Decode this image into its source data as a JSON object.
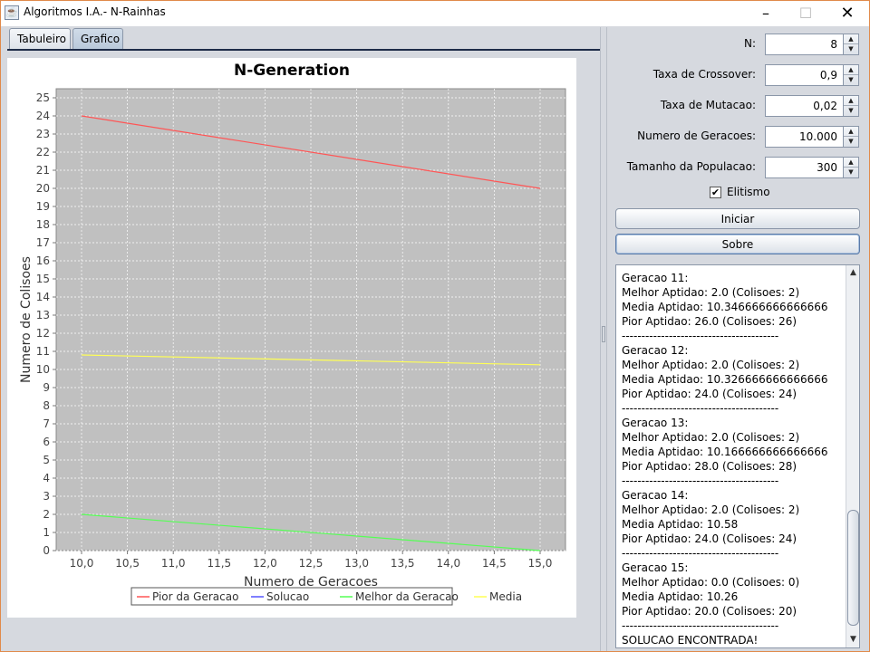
{
  "window": {
    "title": "Algoritmos I.A.- N-Rainhas"
  },
  "tabs": [
    {
      "label": "Tabuleiro"
    },
    {
      "label": "Grafico",
      "selected": true
    }
  ],
  "form": {
    "n_label": "N:",
    "n_value": "8",
    "crossover_label": "Taxa de Crossover:",
    "crossover_value": "0,9",
    "mutacao_label": "Taxa de Mutacao:",
    "mutacao_value": "0,02",
    "geracoes_label": "Numero de Geracoes:",
    "geracoes_value": "10.000",
    "populacao_label": "Tamanho da Populacao:",
    "populacao_value": "300",
    "elitismo_label": "Elitismo",
    "elitismo_checked": true
  },
  "buttons": {
    "iniciar": "Iniciar",
    "sobre": "Sobre"
  },
  "log": {
    "lines": [
      "Geracao 11:",
      "Melhor Aptidao: 2.0 (Colisoes: 2)",
      "Media Aptidao: 10.346666666666666",
      "Pior Aptidao: 26.0 (Colisoes: 26)",
      "----------------------------------------",
      "Geracao 12:",
      "Melhor Aptidao: 2.0 (Colisoes: 2)",
      "Media Aptidao: 10.326666666666666",
      "Pior Aptidao: 24.0 (Colisoes: 24)",
      "----------------------------------------",
      "Geracao 13:",
      "Melhor Aptidao: 2.0 (Colisoes: 2)",
      "Media Aptidao: 10.166666666666666",
      "Pior Aptidao: 28.0 (Colisoes: 28)",
      "----------------------------------------",
      "Geracao 14:",
      "Melhor Aptidao: 2.0 (Colisoes: 2)",
      "Media Aptidao: 10.58",
      "Pior Aptidao: 24.0 (Colisoes: 24)",
      "----------------------------------------",
      "Geracao 15:",
      "Melhor Aptidao: 0.0 (Colisoes: 0)",
      "Media Aptidao: 10.26",
      "Pior Aptidao: 20.0 (Colisoes: 20)",
      "----------------------------------------",
      "SOLUCAO ENCONTRADA!"
    ]
  },
  "chart_data": {
    "type": "line",
    "title": "N-Generation",
    "xlabel": "Numero de Geracoes",
    "ylabel": "Numero de Colisoes",
    "xlim": [
      10.0,
      15.0
    ],
    "ylim": [
      0,
      25
    ],
    "x_ticks": [
      "10,0",
      "10,5",
      "11,0",
      "11,5",
      "12,0",
      "12,5",
      "13,0",
      "13,5",
      "14,0",
      "14,5",
      "15,0"
    ],
    "y_ticks": [
      "0",
      "1",
      "2",
      "3",
      "4",
      "5",
      "6",
      "7",
      "8",
      "9",
      "10",
      "11",
      "12",
      "13",
      "14",
      "15",
      "16",
      "17",
      "18",
      "19",
      "20",
      "21",
      "22",
      "23",
      "24",
      "25"
    ],
    "grid": true,
    "legend_position": "bottom",
    "plot_background": "#c0c0c0",
    "series": [
      {
        "name": "Pior da Geracao",
        "color": "#ff5555",
        "x": [
          10,
          15
        ],
        "y": [
          24,
          20
        ]
      },
      {
        "name": "Solucao",
        "color": "#5555ff",
        "x": [],
        "y": []
      },
      {
        "name": "Melhor da Geracao",
        "color": "#55ff55",
        "x": [
          10,
          15
        ],
        "y": [
          2,
          0
        ]
      },
      {
        "name": "Media",
        "color": "#ffff55",
        "x": [
          10,
          15
        ],
        "y": [
          10.8,
          10.26
        ]
      }
    ]
  }
}
